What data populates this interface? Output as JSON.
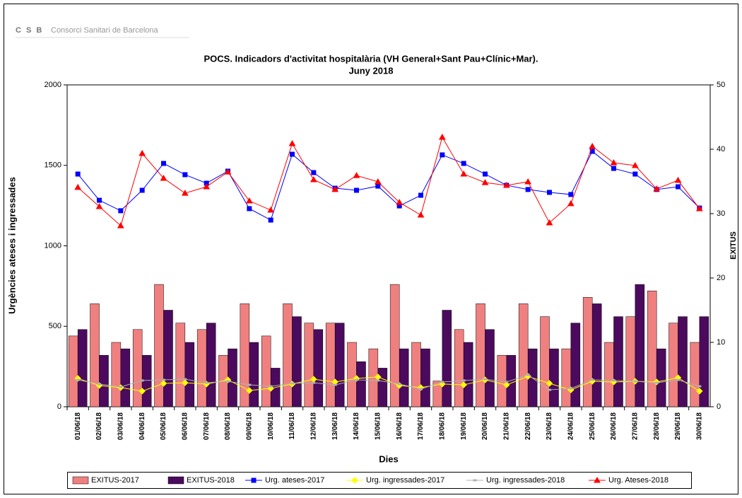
{
  "logo": {
    "mark": "C S B",
    "name": "Consorci Sanitari de Barcelona"
  },
  "chart_data": {
    "type": "combo",
    "title": "POCS.  Indicadors d'activitat hospitalària (VH General+Sant Pau+Clínic+Mar).",
    "subtitle": "Juny 2018",
    "x_label": "Dies",
    "y_label": "Urgències ateses i ingressades",
    "y2_label": "EXITUS",
    "categories": [
      "01/06/18",
      "02/06/18",
      "03/06/18",
      "04/06/18",
      "05/06/18",
      "06/06/18",
      "07/06/18",
      "08/06/18",
      "09/06/18",
      "10/06/18",
      "11/06/18",
      "12/06/18",
      "13/06/18",
      "14/06/18",
      "15/06/18",
      "16/06/18",
      "17/06/18",
      "18/06/18",
      "19/06/18",
      "20/06/18",
      "21/06/18",
      "22/06/18",
      "23/06/18",
      "24/06/18",
      "25/06/18",
      "26/06/18",
      "27/06/18",
      "28/06/18",
      "29/06/18",
      "30/06/18"
    ],
    "ylim": [
      0,
      2000
    ],
    "yticks": [
      0,
      500,
      1000,
      1500,
      2000
    ],
    "y2lim": [
      0,
      50
    ],
    "y2ticks": [
      0,
      10,
      20,
      30,
      40,
      50
    ],
    "legend": "bottom",
    "series": [
      {
        "name": "EXITUS-2017",
        "type": "bar",
        "axis": "y2",
        "color": "#f08080",
        "values": [
          11,
          16,
          10,
          12,
          19,
          13,
          12,
          8,
          16,
          11,
          16,
          13,
          13,
          10,
          9,
          19,
          10,
          4,
          12,
          16,
          8,
          16,
          14,
          9,
          17,
          10,
          14,
          18,
          13,
          10
        ]
      },
      {
        "name": "EXITUS-2018",
        "type": "bar",
        "axis": "y2",
        "color": "#4b0a5e",
        "values": [
          12,
          8,
          9,
          8,
          15,
          10,
          13,
          9,
          10,
          6,
          14,
          12,
          13,
          7,
          6,
          9,
          9,
          15,
          10,
          12,
          8,
          9,
          9,
          13,
          16,
          14,
          19,
          9,
          14,
          14
        ]
      },
      {
        "name": "Urg. ateses-2017",
        "type": "line",
        "marker": "square",
        "color": "#0000ff",
        "values": [
          1446,
          1283,
          1218,
          1345,
          1512,
          1442,
          1389,
          1464,
          1231,
          1160,
          1569,
          1455,
          1358,
          1345,
          1371,
          1248,
          1314,
          1565,
          1512,
          1446,
          1376,
          1350,
          1332,
          1319,
          1587,
          1481,
          1446,
          1350,
          1367,
          1235
        ]
      },
      {
        "name": "Urg. ingressades-2017",
        "type": "line",
        "marker": "diamond",
        "color": "#ffff00",
        "values": [
          176,
          132,
          119,
          97,
          145,
          149,
          141,
          167,
          101,
          114,
          141,
          171,
          154,
          176,
          185,
          132,
          119,
          141,
          136,
          167,
          136,
          189,
          145,
          105,
          158,
          154,
          158,
          154,
          180,
          97
        ]
      },
      {
        "name": "Urg. ingressades-2018",
        "type": "line",
        "marker": "dash",
        "color": "#b0b0b0",
        "values": [
          167,
          141,
          123,
          163,
          167,
          171,
          149,
          158,
          136,
          127,
          145,
          149,
          136,
          167,
          163,
          141,
          110,
          154,
          163,
          171,
          154,
          198,
          105,
          114,
          167,
          163,
          158,
          149,
          167,
          127
        ]
      },
      {
        "name": "Urg. Ateses-2018",
        "type": "line",
        "marker": "triangle",
        "color": "#ff0000",
        "values": [
          1363,
          1244,
          1125,
          1574,
          1420,
          1327,
          1367,
          1459,
          1279,
          1222,
          1635,
          1411,
          1350,
          1437,
          1398,
          1270,
          1191,
          1675,
          1446,
          1393,
          1376,
          1398,
          1143,
          1262,
          1618,
          1516,
          1499,
          1354,
          1407,
          1231
        ]
      }
    ]
  }
}
